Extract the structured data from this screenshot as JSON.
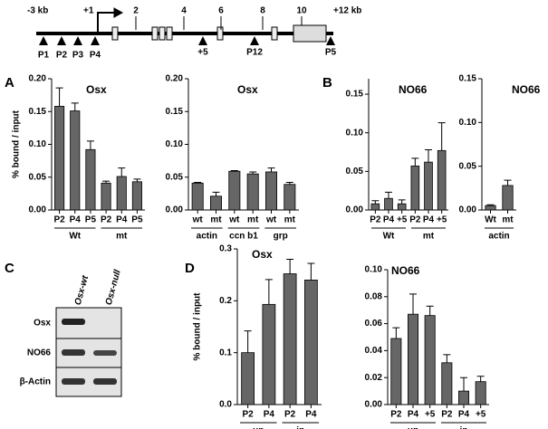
{
  "panel_labels": [
    "A",
    "B",
    "C",
    "D"
  ],
  "gene_map": {
    "positions": [
      "-3 kb",
      "+1",
      "2",
      "4",
      "6",
      "8",
      "10",
      "+12 kb"
    ],
    "primers": [
      "P1",
      "P2",
      "P3",
      "P4",
      "+5",
      "P12",
      "P5"
    ]
  },
  "blot": {
    "lanes": [
      "Osx-wt",
      "Osx-null"
    ],
    "rows": [
      "Osx",
      "NO66",
      "β-Actin"
    ]
  },
  "chart_data": [
    {
      "type": "bar",
      "title": "Osx",
      "y_label": "% bound / input",
      "ylim": [
        0,
        0.2
      ],
      "yticks": [
        {
          "value": 0,
          "label": "0.00"
        },
        {
          "value": 0.05,
          "label": "0.05"
        },
        {
          "value": 0.1,
          "label": "0.10"
        },
        {
          "value": 0.15,
          "label": "0.15"
        },
        {
          "value": 0.2,
          "label": "0.20"
        }
      ],
      "color": "#666666",
      "groups": [
        {
          "name": "Wt",
          "categories": [
            "P2",
            "P4",
            "P5"
          ],
          "values": [
            0.158,
            0.151,
            0.092
          ],
          "errors": [
            0.028,
            0.012,
            0.013
          ]
        },
        {
          "name": "mt",
          "categories": [
            "P2",
            "P4",
            "P5"
          ],
          "values": [
            0.041,
            0.051,
            0.043
          ],
          "errors": [
            0.003,
            0.013,
            0.004
          ]
        }
      ]
    },
    {
      "type": "bar",
      "title": "Osx",
      "ylim": [
        0,
        0.2
      ],
      "yticks": [
        {
          "value": 0,
          "label": "0.00"
        },
        {
          "value": 0.05,
          "label": "0.05"
        },
        {
          "value": 0.1,
          "label": "0.10"
        },
        {
          "value": 0.15,
          "label": "0.15"
        },
        {
          "value": 0.2,
          "label": "0.20"
        }
      ],
      "color": "#666666",
      "groups": [
        {
          "name": "actin",
          "categories": [
            "wt",
            "mt"
          ],
          "values": [
            0.041,
            0.021
          ],
          "errors": [
            0.001,
            0.006
          ]
        },
        {
          "name": "ccn b1",
          "categories": [
            "wt",
            "mt"
          ],
          "values": [
            0.059,
            0.055
          ],
          "errors": [
            0.001,
            0.003
          ]
        },
        {
          "name": "grp",
          "categories": [
            "wt",
            "mt"
          ],
          "values": [
            0.058,
            0.039
          ],
          "errors": [
            0.006,
            0.003
          ]
        }
      ]
    },
    {
      "type": "bar",
      "title": "NO66",
      "ylim": [
        0,
        0.17
      ],
      "yticks": [
        {
          "value": 0,
          "label": "0.00"
        },
        {
          "value": 0.05,
          "label": "0.05"
        },
        {
          "value": 0.1,
          "label": "0.10"
        },
        {
          "value": 0.15,
          "label": "0.15"
        }
      ],
      "color": "#666666",
      "groups": [
        {
          "name": "Wt",
          "categories": [
            "P2",
            "P4",
            "+5"
          ],
          "values": [
            0.008,
            0.015,
            0.008
          ],
          "errors": [
            0.004,
            0.008,
            0.005
          ]
        },
        {
          "name": "mt",
          "categories": [
            "P2",
            "P4",
            "+5"
          ],
          "values": [
            0.057,
            0.062,
            0.077
          ],
          "errors": [
            0.01,
            0.016,
            0.036
          ]
        }
      ]
    },
    {
      "type": "bar",
      "title": "NO66",
      "ylim": [
        0,
        0.15
      ],
      "yticks": [
        {
          "value": 0,
          "label": "0.00"
        },
        {
          "value": 0.05,
          "label": "0.05"
        },
        {
          "value": 0.1,
          "label": "0.10"
        },
        {
          "value": 0.15,
          "label": "0.15"
        }
      ],
      "color": "#666666",
      "groups": [
        {
          "name": "actin",
          "categories": [
            "Wt",
            "mt"
          ],
          "values": [
            0.005,
            0.028
          ],
          "errors": [
            0.001,
            0.006
          ]
        }
      ]
    },
    {
      "type": "bar",
      "title": "Osx",
      "y_label": "% bound / input",
      "ylim": [
        0,
        0.3
      ],
      "yticks": [
        {
          "value": 0,
          "label": "0.0"
        },
        {
          "value": 0.1,
          "label": "0.1"
        },
        {
          "value": 0.2,
          "label": "0.2"
        },
        {
          "value": 0.3,
          "label": "0.3"
        }
      ],
      "color": "#666666",
      "groups": [
        {
          "name": "un",
          "categories": [
            "P2",
            "P4"
          ],
          "values": [
            0.1,
            0.193
          ],
          "errors": [
            0.042,
            0.048
          ]
        },
        {
          "name": "in",
          "categories": [
            "P2",
            "P4"
          ],
          "values": [
            0.252,
            0.24
          ],
          "errors": [
            0.028,
            0.032
          ]
        }
      ]
    },
    {
      "type": "bar",
      "title": "NO66",
      "ylim": [
        0,
        0.1
      ],
      "yticks": [
        {
          "value": 0,
          "label": "0.00"
        },
        {
          "value": 0.02,
          "label": "0.02"
        },
        {
          "value": 0.04,
          "label": "0.04"
        },
        {
          "value": 0.06,
          "label": "0.06"
        },
        {
          "value": 0.08,
          "label": "0.08"
        },
        {
          "value": 0.1,
          "label": "0.10"
        }
      ],
      "color": "#666666",
      "groups": [
        {
          "name": "un",
          "categories": [
            "P2",
            "P4",
            "+5"
          ],
          "values": [
            0.049,
            0.067,
            0.066
          ],
          "errors": [
            0.008,
            0.015,
            0.007
          ]
        },
        {
          "name": "in",
          "categories": [
            "P2",
            "P4",
            "+5"
          ],
          "values": [
            0.031,
            0.01,
            0.017
          ],
          "errors": [
            0.006,
            0.01,
            0.004
          ]
        }
      ]
    }
  ]
}
